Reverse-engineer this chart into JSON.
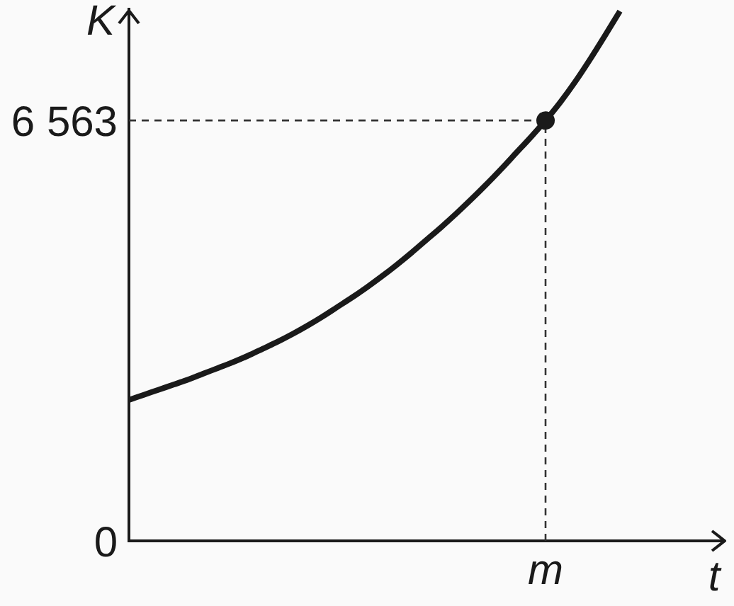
{
  "chart_data": {
    "type": "line",
    "xlabel": "t",
    "ylabel": "K",
    "categories": [
      null,
      null,
      null,
      null,
      null,
      null,
      null,
      null,
      null,
      null,
      null,
      null,
      null,
      null,
      null,
      null,
      null,
      null,
      null,
      null,
      null,
      null,
      null,
      null,
      null,
      null,
      null,
      null,
      "m",
      null,
      null,
      null,
      null,
      null,
      null,
      null,
      null,
      null,
      null,
      null,
      null
    ],
    "ylim": [
      0,
      8300
    ],
    "yticks": [
      0,
      {
        "value": 6563,
        "label": "6 563"
      }
    ],
    "series": [
      {
        "type": "line",
        "color": "#1a1a1a",
        "marker": "none",
        "values": [
          2200,
          2280,
          2360,
          2440,
          2520,
          2610,
          2700,
          2790,
          2890,
          3000,
          3110,
          3230,
          3360,
          3500,
          3650,
          3800,
          3960,
          4130,
          4310,
          4500,
          4700,
          4900,
          5110,
          5330,
          5560,
          5800,
          6050,
          6300,
          6563,
          6850,
          7170,
          7520,
          7890,
          8270,
          null,
          null,
          null,
          null,
          null,
          null,
          null
        ]
      },
      {
        "type": "scatter",
        "color": "#1a1a1a",
        "marker": "circle",
        "x": [
          "m"
        ],
        "values": [
          6563
        ]
      }
    ],
    "ref_lines": [
      {
        "axis": "y",
        "value": 6563,
        "line_style": "dashed",
        "color": "#333333"
      },
      {
        "axis": "x",
        "value": "m",
        "line_style": "dashed",
        "color": "#333333"
      }
    ]
  }
}
